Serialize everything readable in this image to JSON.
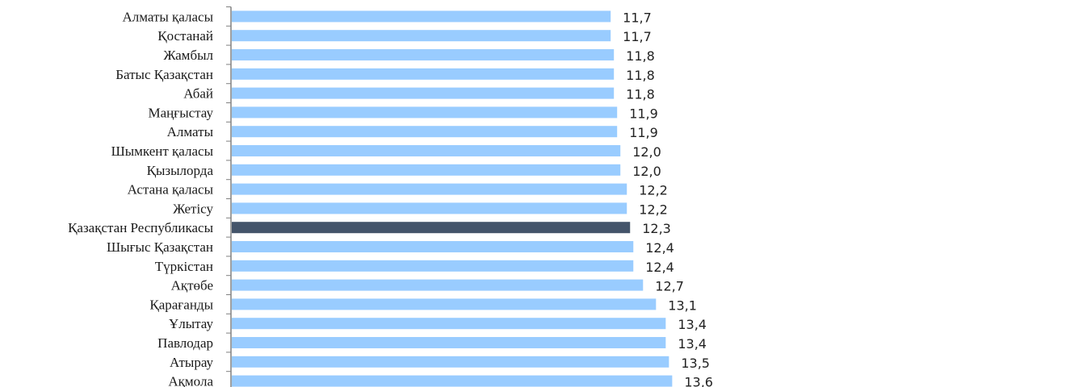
{
  "chart_data": {
    "type": "bar",
    "orientation": "horizontal",
    "categories": [
      "Алматы қаласы",
      "Қостанай",
      "Жамбыл",
      "Батыс Қазақстан",
      "Абай",
      "Маңғыстау",
      "Алматы",
      "Шымкент қаласы",
      "Қызылорда",
      "Астана қаласы",
      "Жетісу",
      "Қазақстан Республикасы",
      "Шығыс Қазақстан",
      "Түркістан",
      "Ақтөбе",
      "Қарағанды",
      "Ұлытау",
      "Павлодар",
      "Атырау",
      "Ақмола"
    ],
    "values": [
      11.7,
      11.7,
      11.8,
      11.8,
      11.8,
      11.9,
      11.9,
      12.0,
      12.0,
      12.2,
      12.2,
      12.3,
      12.4,
      12.4,
      12.7,
      13.1,
      13.4,
      13.4,
      13.5,
      13.6
    ],
    "value_labels": [
      "11,7",
      "11,7",
      "11,8",
      "11,8",
      "11,8",
      "11,9",
      "11,9",
      "12,0",
      "12,0",
      "12,2",
      "12,2",
      "12,3",
      "12,4",
      "12,4",
      "12,7",
      "13,1",
      "13,4",
      "13,4",
      "13,5",
      "13,6"
    ],
    "highlight_category": "Қазақстан Республикасы",
    "colors": {
      "bar": "#99CCFF",
      "highlight": "#44546A",
      "axis": "#808080"
    },
    "xlim": [
      0,
      26
    ],
    "grid": false,
    "title": "",
    "xlabel": "",
    "ylabel": ""
  }
}
